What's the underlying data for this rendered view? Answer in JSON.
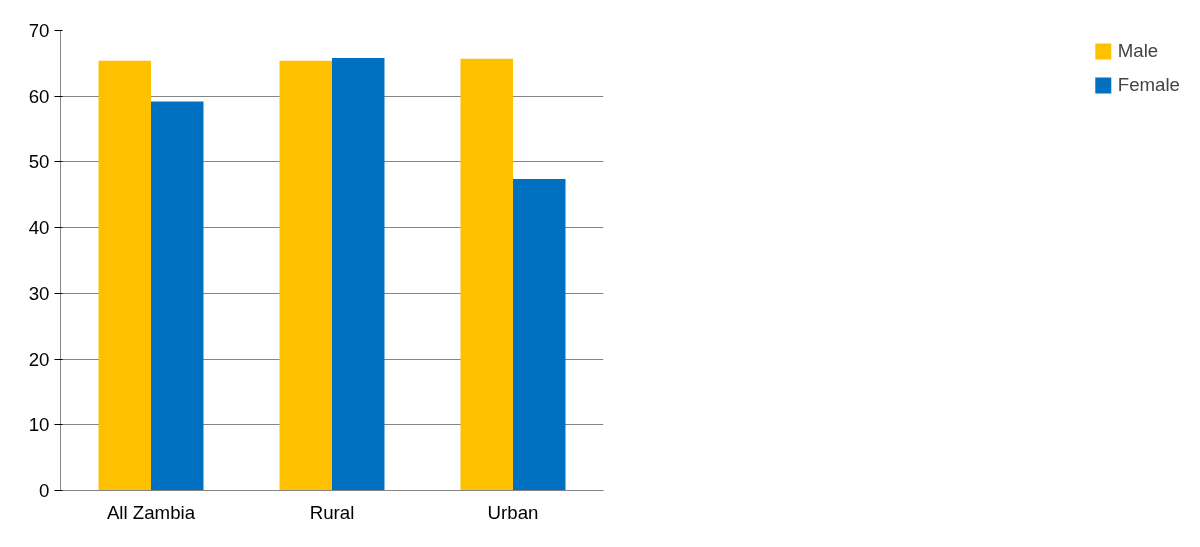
{
  "chart_data": {
    "type": "bar",
    "categories": [
      "All Zambia",
      "Rural",
      "Urban"
    ],
    "series": [
      {
        "name": "Male",
        "color": "#ffc000",
        "values": [
          65.4,
          65.4,
          65.7
        ]
      },
      {
        "name": "Female",
        "color": "#0070c0",
        "values": [
          59.2,
          65.8,
          47.4
        ]
      }
    ],
    "ylim": [
      0,
      70
    ],
    "yticks": [
      0,
      10,
      20,
      30,
      40,
      50,
      60,
      70
    ],
    "grid": "y",
    "legend": "right"
  }
}
